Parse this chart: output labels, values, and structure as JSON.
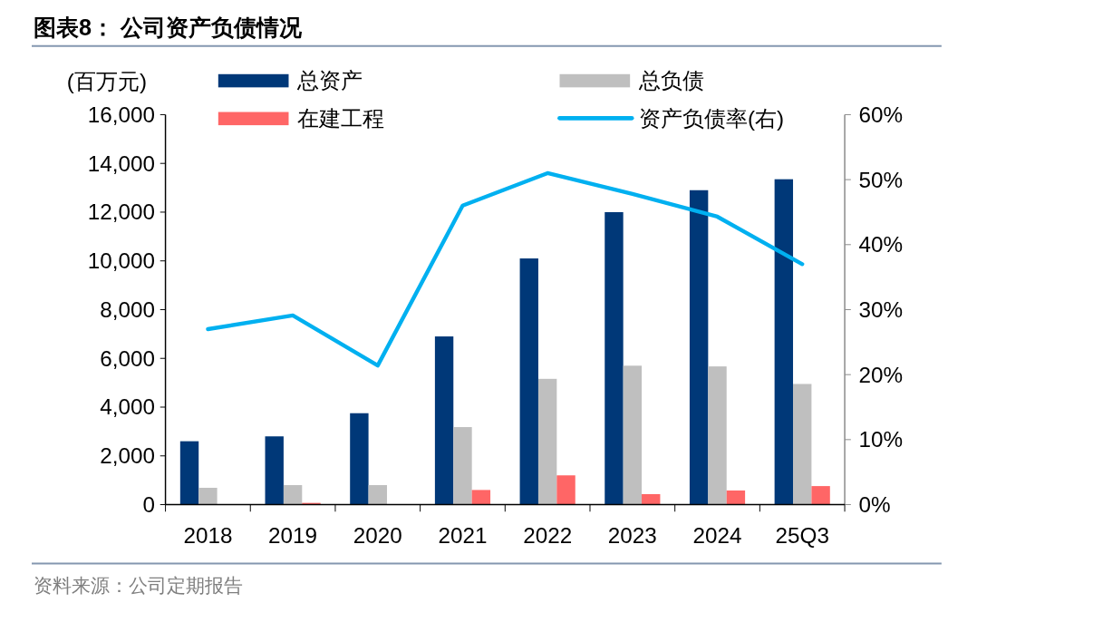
{
  "chart_data": {
    "type": "bar",
    "title": "图表8： 公司资产负债情况",
    "ylabel": "(百万元)",
    "categories": [
      "2018",
      "2019",
      "2020",
      "2021",
      "2022",
      "2023",
      "2024",
      "25Q3"
    ],
    "series": [
      {
        "name": "总资产",
        "color": "#003878",
        "values": [
          2600,
          2800,
          3750,
          6900,
          10100,
          12000,
          12900,
          13350
        ]
      },
      {
        "name": "总负债",
        "color": "#bfbfbf",
        "values": [
          690,
          800,
          800,
          3180,
          5160,
          5700,
          5670,
          4950
        ]
      },
      {
        "name": "在建工程",
        "color": "#ff6666",
        "values": [
          null,
          70,
          0,
          600,
          1200,
          430,
          580,
          760
        ]
      },
      {
        "name": "资产负债率(右)",
        "type": "line",
        "axis": "y2",
        "color": "#00b0f0",
        "values": [
          27,
          29.1,
          21.4,
          46,
          51,
          47.8,
          44.3,
          37
        ]
      }
    ],
    "ylim": [
      0,
      16000
    ],
    "yticks": [
      {
        "value": 0,
        "label": "0"
      },
      {
        "value": 2000,
        "label": "2,000"
      },
      {
        "value": 4000,
        "label": "4,000"
      },
      {
        "value": 6000,
        "label": "6,000"
      },
      {
        "value": 8000,
        "label": "8,000"
      },
      {
        "value": 10000,
        "label": "10,000"
      },
      {
        "value": 12000,
        "label": "12,000"
      },
      {
        "value": 14000,
        "label": "14,000"
      },
      {
        "value": 16000,
        "label": "16,000"
      }
    ],
    "y2lim": [
      0,
      60
    ],
    "y2ticks": [
      {
        "value": 0,
        "label": "0%"
      },
      {
        "value": 10,
        "label": "10%"
      },
      {
        "value": 20,
        "label": "20%"
      },
      {
        "value": 30,
        "label": "30%"
      },
      {
        "value": 40,
        "label": "40%"
      },
      {
        "value": 50,
        "label": "50%"
      },
      {
        "value": 60,
        "label": "60%"
      }
    ],
    "legend": "top",
    "grid": false,
    "annotations": [
      "资料来源：公司定期报告"
    ]
  }
}
